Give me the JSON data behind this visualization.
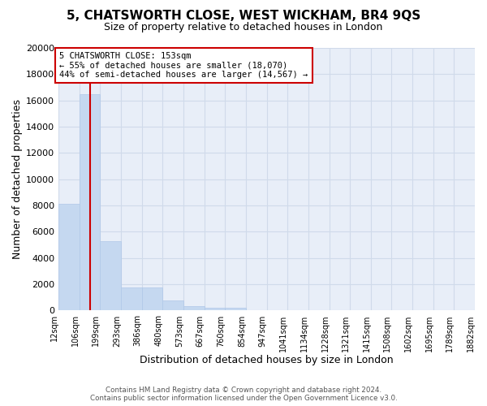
{
  "title": "5, CHATSWORTH CLOSE, WEST WICKHAM, BR4 9QS",
  "subtitle": "Size of property relative to detached houses in London",
  "xlabel": "Distribution of detached houses by size in London",
  "ylabel": "Number of detached properties",
  "bar_values": [
    8100,
    16500,
    5300,
    1750,
    1750,
    750,
    340,
    200,
    200,
    0,
    0,
    0,
    0,
    0,
    0,
    0,
    0,
    0,
    0,
    0
  ],
  "bar_color": "#c5d8f0",
  "bar_edge_color": "#b0c8e8",
  "grid_color": "#d0daea",
  "background_color": "#e8eef8",
  "x_labels": [
    "12sqm",
    "106sqm",
    "199sqm",
    "293sqm",
    "386sqm",
    "480sqm",
    "573sqm",
    "667sqm",
    "760sqm",
    "854sqm",
    "947sqm",
    "1041sqm",
    "1134sqm",
    "1228sqm",
    "1321sqm",
    "1415sqm",
    "1508sqm",
    "1602sqm",
    "1695sqm",
    "1789sqm",
    "1882sqm"
  ],
  "vline_x": 1.0,
  "vline_color": "#cc0000",
  "annotation_title": "5 CHATSWORTH CLOSE: 153sqm",
  "annotation_line1": "← 55% of detached houses are smaller (18,070)",
  "annotation_line2": "44% of semi-detached houses are larger (14,567) →",
  "annotation_box_edgecolor": "#cc0000",
  "annotation_bg": "#ffffff",
  "ylim": [
    0,
    20000
  ],
  "yticks": [
    0,
    2000,
    4000,
    6000,
    8000,
    10000,
    12000,
    14000,
    16000,
    18000,
    20000
  ],
  "title_fontsize": 11,
  "subtitle_fontsize": 9,
  "ylabel_fontsize": 9,
  "xlabel_fontsize": 9,
  "tick_fontsize": 7,
  "footer1": "Contains HM Land Registry data © Crown copyright and database right 2024.",
  "footer2": "Contains public sector information licensed under the Open Government Licence v3.0."
}
